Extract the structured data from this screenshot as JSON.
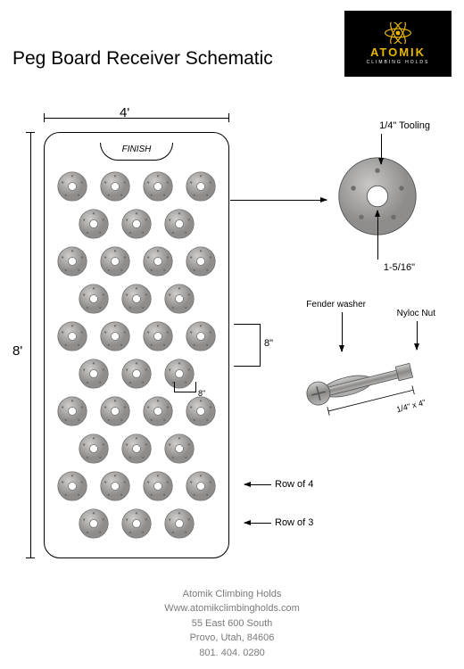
{
  "title": "Peg Board Receiver Schematic",
  "logo": {
    "brand": "ATOMIK",
    "tagline": "CLIMBING HOLDS",
    "bg": "#000000",
    "accent": "#e8b800"
  },
  "board": {
    "width_label": "4'",
    "height_label": "8'",
    "finish_label": "FINISH",
    "rows": [
      4,
      3,
      4,
      3,
      4,
      3,
      4,
      3,
      4,
      3
    ],
    "hole_spacing_v": "8\"",
    "hole_spacing_h": "8\"",
    "row4_label": "Row of 4",
    "row3_label": "Row of 3",
    "hold_fill": "#a8a7a6",
    "hold_stroke": "#6e6d6c"
  },
  "detail": {
    "tooling_label": "1/4\" Tooling",
    "center_hole_label": "1-5/16\"",
    "fill": "#a8a7a6",
    "stroke": "#545454"
  },
  "bolt": {
    "fender_label": "Fender washer",
    "nyloc_label": "Nyloc Nut",
    "dim_label": "1/4\" x 4\"",
    "fill": "#a8a7a6",
    "stroke": "#545454"
  },
  "footer": {
    "company": "Atomik Climbing Holds",
    "website": "Www.atomikclimbingholds.com",
    "address1": "55 East 600 South",
    "address2": "Provo, Utah, 84606",
    "phone": "801. 404. 0280",
    "color": "#7a7a7a"
  }
}
